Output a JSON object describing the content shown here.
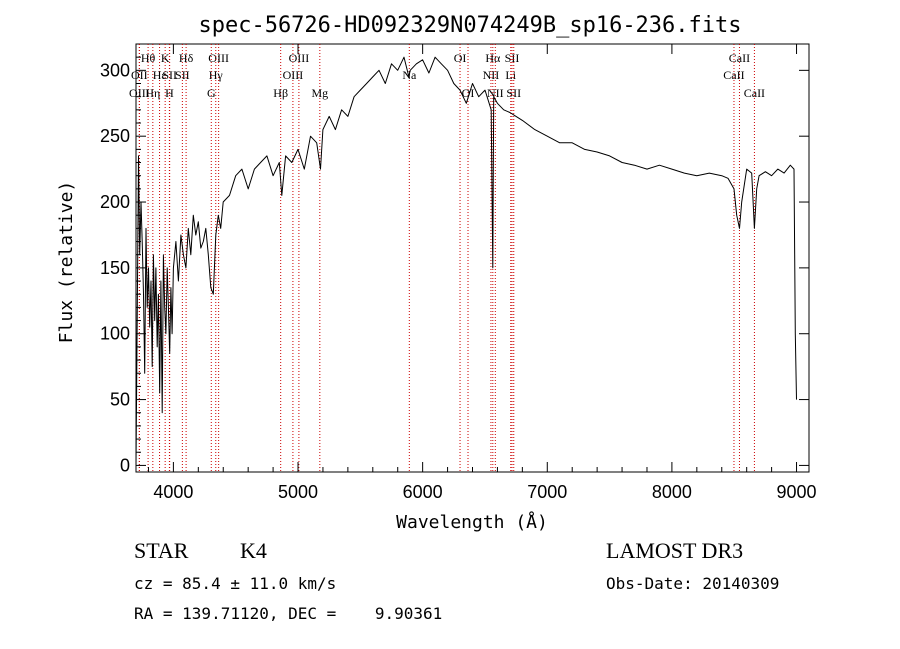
{
  "chart_data": {
    "type": "line",
    "title": "spec-56726-HD092329N074249B_sp16-236.fits",
    "xlabel": "Wavelength (Å)",
    "ylabel": "Flux (relative)",
    "xlim": [
      3700,
      9100
    ],
    "ylim": [
      -5,
      320
    ],
    "x_ticks": [
      4000,
      5000,
      6000,
      7000,
      8000,
      9000
    ],
    "y_ticks": [
      0,
      50,
      100,
      150,
      200,
      250,
      300
    ],
    "grid": false,
    "line_color": "#000000",
    "marker_color": "#cc0000",
    "series": [
      {
        "name": "flux",
        "x": [
          3700,
          3710,
          3720,
          3730,
          3740,
          3750,
          3760,
          3770,
          3780,
          3790,
          3800,
          3810,
          3820,
          3830,
          3840,
          3850,
          3860,
          3870,
          3880,
          3890,
          3900,
          3910,
          3920,
          3930,
          3940,
          3950,
          3960,
          3970,
          3980,
          3990,
          4000,
          4020,
          4040,
          4060,
          4080,
          4100,
          4120,
          4140,
          4160,
          4180,
          4200,
          4220,
          4240,
          4260,
          4280,
          4300,
          4320,
          4340,
          4360,
          4380,
          4400,
          4450,
          4500,
          4550,
          4600,
          4650,
          4700,
          4750,
          4800,
          4850,
          4870,
          4900,
          4950,
          5000,
          5050,
          5100,
          5150,
          5180,
          5200,
          5250,
          5300,
          5350,
          5400,
          5450,
          5500,
          5550,
          5600,
          5650,
          5700,
          5750,
          5800,
          5850,
          5890,
          5900,
          5950,
          6000,
          6050,
          6100,
          6150,
          6200,
          6250,
          6300,
          6350,
          6400,
          6450,
          6500,
          6550,
          6563,
          6570,
          6600,
          6650,
          6700,
          6750,
          6800,
          6900,
          7000,
          7100,
          7200,
          7300,
          7400,
          7500,
          7600,
          7700,
          7800,
          7900,
          8000,
          8100,
          8200,
          8300,
          8400,
          8450,
          8498,
          8520,
          8542,
          8560,
          8600,
          8640,
          8662,
          8680,
          8700,
          8750,
          8800,
          8850,
          8900,
          8950,
          8980,
          8990,
          9000
        ],
        "y": [
          0,
          110,
          235,
          160,
          200,
          170,
          130,
          70,
          180,
          120,
          150,
          105,
          140,
          75,
          160,
          110,
          150,
          90,
          130,
          55,
          140,
          40,
          160,
          120,
          100,
          150,
          120,
          85,
          135,
          100,
          150,
          170,
          140,
          175,
          160,
          150,
          180,
          160,
          190,
          175,
          185,
          165,
          170,
          180,
          160,
          135,
          130,
          175,
          190,
          180,
          200,
          205,
          220,
          225,
          210,
          225,
          230,
          235,
          220,
          230,
          205,
          235,
          230,
          240,
          225,
          250,
          245,
          225,
          255,
          265,
          255,
          270,
          265,
          280,
          285,
          290,
          295,
          300,
          290,
          305,
          300,
          310,
          295,
          300,
          305,
          308,
          298,
          310,
          305,
          300,
          290,
          285,
          275,
          290,
          280,
          285,
          270,
          150,
          280,
          275,
          270,
          268,
          265,
          262,
          255,
          250,
          245,
          245,
          240,
          238,
          235,
          230,
          228,
          225,
          228,
          225,
          222,
          220,
          222,
          220,
          218,
          210,
          190,
          180,
          200,
          225,
          222,
          180,
          210,
          220,
          223,
          220,
          225,
          222,
          228,
          225,
          100,
          50
        ]
      }
    ],
    "spectral_lines": [
      {
        "label": "Hθ",
        "x": 3797,
        "row": 0
      },
      {
        "label": "OII",
        "x": 3727,
        "row": 1
      },
      {
        "label": "OIII",
        "x": 3727,
        "row": 2
      },
      {
        "label": "Hη",
        "x": 3835,
        "row": 2
      },
      {
        "label": "Hε",
        "x": 3889,
        "row": 1
      },
      {
        "label": "K",
        "x": 3934,
        "row": 0
      },
      {
        "label": "SII",
        "x": 3970,
        "row": 1
      },
      {
        "label": "H",
        "x": 3968,
        "row": 2
      },
      {
        "label": "Hδ",
        "x": 4102,
        "row": 0
      },
      {
        "label": "SII",
        "x": 4072,
        "row": 1
      },
      {
        "label": "OIII",
        "x": 4363,
        "row": 0
      },
      {
        "label": "Hγ",
        "x": 4340,
        "row": 1
      },
      {
        "label": "G",
        "x": 4304,
        "row": 2
      },
      {
        "label": "Hβ",
        "x": 4861,
        "row": 2
      },
      {
        "label": "OIII",
        "x": 5007,
        "row": 0
      },
      {
        "label": "OIII",
        "x": 4959,
        "row": 1
      },
      {
        "label": "Mg",
        "x": 5175,
        "row": 2
      },
      {
        "label": "Na",
        "x": 5893,
        "row": 1
      },
      {
        "label": "OI",
        "x": 6300,
        "row": 0
      },
      {
        "label": "OI",
        "x": 6364,
        "row": 2
      },
      {
        "label": "Hα",
        "x": 6563,
        "row": 0
      },
      {
        "label": "NII",
        "x": 6548,
        "row": 1
      },
      {
        "label": "NII",
        "x": 6583,
        "row": 2
      },
      {
        "label": "SII",
        "x": 6717,
        "row": 0
      },
      {
        "label": "Li",
        "x": 6707,
        "row": 1
      },
      {
        "label": "SII",
        "x": 6731,
        "row": 2
      },
      {
        "label": "CaII",
        "x": 8542,
        "row": 0
      },
      {
        "label": "CaII",
        "x": 8498,
        "row": 1
      },
      {
        "label": "CaII",
        "x": 8662,
        "row": 2
      }
    ]
  },
  "info": {
    "class_label": "STAR",
    "subclass": "K4",
    "survey": "LAMOST DR3",
    "cz": "cz = 85.4 ± 11.0 km/s",
    "obs_date": "Obs-Date: 20140309",
    "coords": "RA = 139.71120, DEC =    9.90361"
  }
}
